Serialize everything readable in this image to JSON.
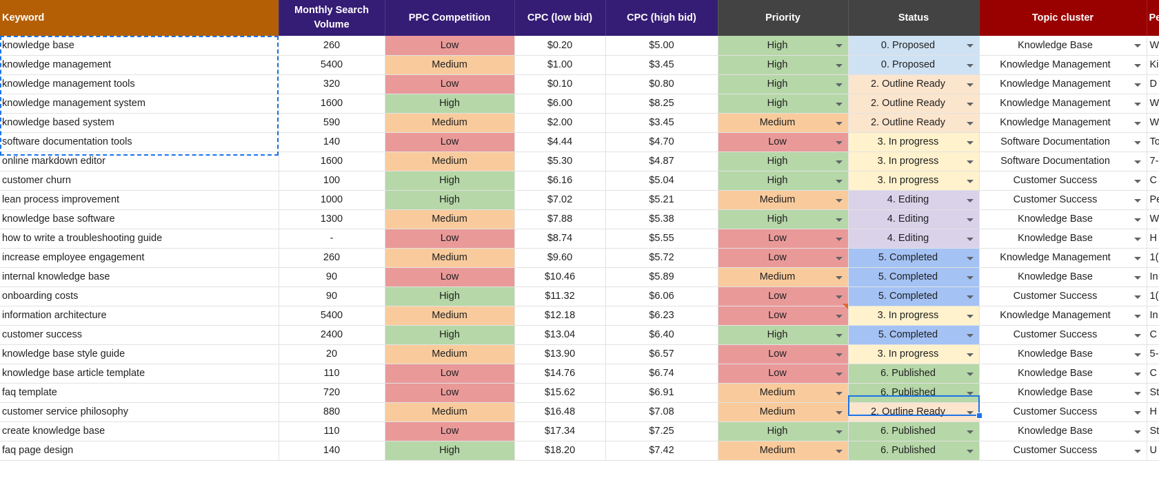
{
  "headers": [
    {
      "label": "Keyword",
      "bg": "#b45f06",
      "align": "left"
    },
    {
      "label": "Monthly Search Volume",
      "bg": "#351c75",
      "align": "center"
    },
    {
      "label": "PPC Competition",
      "bg": "#351c75",
      "align": "center"
    },
    {
      "label": "CPC (low bid)",
      "bg": "#351c75",
      "align": "center"
    },
    {
      "label": "CPC (high bid)",
      "bg": "#351c75",
      "align": "center"
    },
    {
      "label": "Priority",
      "bg": "#434343",
      "align": "center"
    },
    {
      "label": "Status",
      "bg": "#434343",
      "align": "center"
    },
    {
      "label": "Topic cluster",
      "bg": "#990000",
      "align": "center"
    },
    {
      "label": "Pe",
      "bg": "#990000",
      "align": "left"
    }
  ],
  "level_colors": {
    "Low": "#ea9999",
    "Medium": "#f9cb9c",
    "High": "#b6d7a8"
  },
  "status_colors": {
    "0. Proposed": "#cfe2f3",
    "2. Outline Ready": "#fce5cd",
    "3. In progress": "#fff2cc",
    "4. Editing": "#d9d2e9",
    "5. Completed": "#a4c2f4",
    "6. Published": "#b6d7a8"
  },
  "rows": [
    {
      "keyword": "knowledge base",
      "volume": "260",
      "ppc": "Low",
      "cpc_low": "$0.20",
      "cpc_high": "$5.00",
      "priority": "High",
      "status": "0. Proposed",
      "topic": "Knowledge Base",
      "pe": "W"
    },
    {
      "keyword": "knowledge management",
      "volume": "5400",
      "ppc": "Medium",
      "cpc_low": "$1.00",
      "cpc_high": "$3.45",
      "priority": "High",
      "status": "0. Proposed",
      "topic": "Knowledge Management",
      "pe": "Ki"
    },
    {
      "keyword": "knowledge management tools",
      "volume": "320",
      "ppc": "Low",
      "cpc_low": "$0.10",
      "cpc_high": "$0.80",
      "priority": "High",
      "status": "2. Outline Ready",
      "topic": "Knowledge Management",
      "pe": "D"
    },
    {
      "keyword": "knowledge management system",
      "volume": "1600",
      "ppc": "High",
      "cpc_low": "$6.00",
      "cpc_high": "$8.25",
      "priority": "High",
      "status": "2. Outline Ready",
      "topic": "Knowledge Management",
      "pe": "W"
    },
    {
      "keyword": "knowledge based system",
      "volume": "590",
      "ppc": "Medium",
      "cpc_low": "$2.00",
      "cpc_high": "$3.45",
      "priority": "Medium",
      "status": "2. Outline Ready",
      "topic": "Knowledge Management",
      "pe": "W"
    },
    {
      "keyword": "software documentation tools",
      "volume": "140",
      "ppc": "Low",
      "cpc_low": "$4.44",
      "cpc_high": "$4.70",
      "priority": "Low",
      "status": "3. In progress",
      "topic": "Software Documentation",
      "pe": "To"
    },
    {
      "keyword": "online markdown editor",
      "volume": "1600",
      "ppc": "Medium",
      "cpc_low": "$5.30",
      "cpc_high": "$4.87",
      "priority": "High",
      "status": "3. In progress",
      "topic": "Software Documentation",
      "pe": "7-"
    },
    {
      "keyword": "customer churn",
      "volume": "100",
      "ppc": "High",
      "cpc_low": "$6.16",
      "cpc_high": "$5.04",
      "priority": "High",
      "status": "3. In progress",
      "topic": "Customer Success",
      "pe": "C"
    },
    {
      "keyword": "lean process improvement",
      "volume": "1000",
      "ppc": "High",
      "cpc_low": "$7.02",
      "cpc_high": "$5.21",
      "priority": "Medium",
      "status": "4. Editing",
      "topic": "Customer Success",
      "pe": "Pe"
    },
    {
      "keyword": "knowledge base software",
      "volume": "1300",
      "ppc": "Medium",
      "cpc_low": "$7.88",
      "cpc_high": "$5.38",
      "priority": "High",
      "status": "4. Editing",
      "topic": "Knowledge Base",
      "pe": "W"
    },
    {
      "keyword": "how to write a troubleshooting guide",
      "volume": "-",
      "ppc": "Low",
      "cpc_low": "$8.74",
      "cpc_high": "$5.55",
      "priority": "Low",
      "status": "4. Editing",
      "topic": "Knowledge Base",
      "pe": "H"
    },
    {
      "keyword": "increase employee engagement",
      "volume": "260",
      "ppc": "Medium",
      "cpc_low": "$9.60",
      "cpc_high": "$5.72",
      "priority": "Low",
      "status": "5. Completed",
      "topic": "Knowledge Management",
      "pe": "1("
    },
    {
      "keyword": "internal knowledge base",
      "volume": "90",
      "ppc": "Low",
      "cpc_low": "$10.46",
      "cpc_high": "$5.89",
      "priority": "Medium",
      "status": "5. Completed",
      "topic": "Knowledge Base",
      "pe": "In"
    },
    {
      "keyword": "onboarding costs",
      "volume": "90",
      "ppc": "High",
      "cpc_low": "$11.32",
      "cpc_high": "$6.06",
      "priority": "Low",
      "status": "5. Completed",
      "topic": "Customer Success",
      "pe": "1("
    },
    {
      "keyword": "information architecture",
      "volume": "5400",
      "ppc": "Medium",
      "cpc_low": "$12.18",
      "cpc_high": "$6.23",
      "priority": "Low",
      "status": "3. In progress",
      "topic": "Knowledge Management",
      "pe": "In"
    },
    {
      "keyword": "customer success",
      "volume": "2400",
      "ppc": "High",
      "cpc_low": "$13.04",
      "cpc_high": "$6.40",
      "priority": "High",
      "status": "5. Completed",
      "topic": "Customer Success",
      "pe": "C"
    },
    {
      "keyword": "knowledge base style guide",
      "volume": "20",
      "ppc": "Medium",
      "cpc_low": "$13.90",
      "cpc_high": "$6.57",
      "priority": "Low",
      "status": "3. In progress",
      "topic": "Knowledge Base",
      "pe": "5-"
    },
    {
      "keyword": "knowledge base article template",
      "volume": "110",
      "ppc": "Low",
      "cpc_low": "$14.76",
      "cpc_high": "$6.74",
      "priority": "Low",
      "status": "6. Published",
      "topic": "Knowledge Base",
      "pe": "C"
    },
    {
      "keyword": "faq template",
      "volume": "720",
      "ppc": "Low",
      "cpc_low": "$15.62",
      "cpc_high": "$6.91",
      "priority": "Medium",
      "status": "6. Published",
      "topic": "Knowledge Base",
      "pe": "St"
    },
    {
      "keyword": "customer service philosophy",
      "volume": "880",
      "ppc": "Medium",
      "cpc_low": "$16.48",
      "cpc_high": "$7.08",
      "priority": "Medium",
      "status": "2. Outline Ready",
      "topic": "Customer Success",
      "pe": "H"
    },
    {
      "keyword": "create knowledge base",
      "volume": "110",
      "ppc": "Low",
      "cpc_low": "$17.34",
      "cpc_high": "$7.25",
      "priority": "High",
      "status": "6. Published",
      "topic": "Knowledge Base",
      "pe": "St"
    },
    {
      "keyword": "faq page design",
      "volume": "140",
      "ppc": "High",
      "cpc_low": "$18.20",
      "cpc_high": "$7.42",
      "priority": "Medium",
      "status": "6. Published",
      "topic": "Customer Success",
      "pe": "U"
    }
  ]
}
